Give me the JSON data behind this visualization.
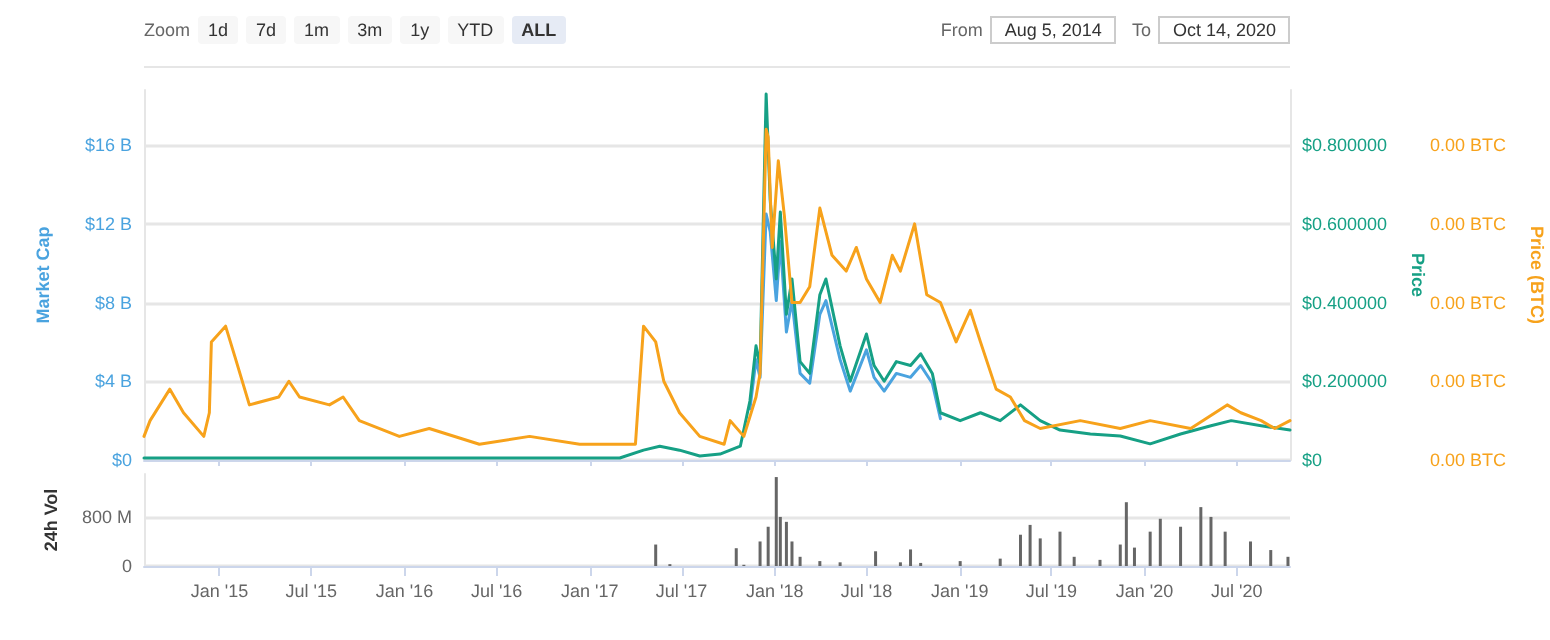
{
  "chart_data": [
    {
      "type": "line",
      "ylabel": "Market Cap",
      "y2label": "Price",
      "y3label": "Price (BTC)",
      "annotations": [
        "Zoom",
        "1d",
        "7d",
        "1m",
        "3m",
        "1y",
        "YTD",
        "ALL",
        "From",
        "Aug 5, 2014",
        "To",
        "Oct 14, 2020"
      ],
      "xlim": [
        "2014-08-05",
        "2020-10-14"
      ],
      "xticks": [
        {
          "value": "2015-01-01",
          "label": null
        },
        {
          "value": "2015-07-01",
          "label": null
        },
        {
          "value": "2016-01-01",
          "label": null
        },
        {
          "value": "2016-07-01",
          "label": null
        },
        {
          "value": "2017-01-01",
          "label": null
        },
        {
          "value": "2017-07-01",
          "label": null
        },
        {
          "value": "2018-01-01",
          "label": null
        },
        {
          "value": "2018-07-01",
          "label": null
        },
        {
          "value": "2019-01-01",
          "label": null
        },
        {
          "value": "2019-07-01",
          "label": null
        },
        {
          "value": "2020-01-01",
          "label": null
        },
        {
          "value": "2020-07-01",
          "label": null
        }
      ],
      "ylim": [
        0,
        18800000000
      ],
      "yticks": [
        {
          "value": 0,
          "label": "$0"
        },
        {
          "value": 4000000000,
          "label": "$4 B"
        },
        {
          "value": 8000000000,
          "label": "$8 B"
        },
        {
          "value": 12000000000,
          "label": "$12 B"
        },
        {
          "value": 16000000000,
          "label": "$16 B"
        }
      ],
      "y2lim": [
        0,
        0.94
      ],
      "y2ticks": [
        {
          "value": 0,
          "label": "$0"
        },
        {
          "value": 0.2,
          "label": "$0.200000"
        },
        {
          "value": 0.4,
          "label": "$0.400000"
        },
        {
          "value": 0.6,
          "label": "$0.600000"
        },
        {
          "value": 0.8,
          "label": "$0.800000"
        }
      ],
      "y3lim": [
        0,
        4.7e-05
      ],
      "y3ticks": [
        {
          "value": 0,
          "label": "0.00 BTC"
        },
        {
          "value": 1e-05,
          "label": "0.00 BTC"
        },
        {
          "value": 2e-05,
          "label": "0.00 BTC"
        },
        {
          "value": 3e-05,
          "label": "0.00 BTC"
        },
        {
          "value": 4e-05,
          "label": "0.00 BTC"
        }
      ],
      "tick_labels": "y",
      "grid": "y",
      "marker": "none",
      "line_style": "solid",
      "series": [
        {
          "axis": "y",
          "color": "#4aa3df",
          "x": [
            "2017-11-13",
            "2017-11-25",
            "2017-12-03",
            "2017-12-15",
            "2017-12-23",
            "2018-01-04",
            "2018-01-12",
            "2018-01-24",
            "2018-02-04",
            "2018-02-20",
            "2018-03-11",
            "2018-03-31",
            "2018-04-12",
            "2018-05-10",
            "2018-05-30",
            "2018-07-01",
            "2018-07-16",
            "2018-08-05",
            "2018-08-29",
            "2018-09-26",
            "2018-10-16",
            "2018-11-08",
            "2018-11-24"
          ],
          "values": [
            2600000000,
            5100000000,
            4200000000,
            12500000000,
            11600000000,
            8100000000,
            11100000000,
            6500000000,
            8100000000,
            4400000000,
            3900000000,
            7400000000,
            8100000000,
            5100000000,
            3500000000,
            5600000000,
            4200000000,
            3500000000,
            4400000000,
            4200000000,
            4800000000,
            3900000000,
            2100000000
          ]
        },
        {
          "axis": "y2",
          "color": "#16a085",
          "x": [
            "2014-08-05",
            "2017-03-01",
            "2017-04-17",
            "2017-05-19",
            "2017-06-27",
            "2017-08-06",
            "2017-09-15",
            "2017-10-25",
            "2017-11-13",
            "2017-11-25",
            "2017-12-03",
            "2017-12-15",
            "2017-12-23",
            "2018-01-04",
            "2018-01-12",
            "2018-01-24",
            "2018-02-04",
            "2018-02-20",
            "2018-03-11",
            "2018-03-31",
            "2018-04-12",
            "2018-05-10",
            "2018-05-30",
            "2018-07-01",
            "2018-07-16",
            "2018-08-05",
            "2018-08-29",
            "2018-09-26",
            "2018-10-16",
            "2018-11-08",
            "2018-11-24",
            "2019-01-02",
            "2019-02-11",
            "2019-03-22",
            "2019-05-01",
            "2019-06-09",
            "2019-07-18",
            "2019-09-16",
            "2019-11-14",
            "2020-01-12",
            "2020-03-12",
            "2020-05-11",
            "2020-06-20",
            "2020-08-18",
            "2020-10-14"
          ],
          "values": [
            0.005,
            0.005,
            0.025,
            0.035,
            0.025,
            0.01,
            0.015,
            0.035,
            0.15,
            0.29,
            0.24,
            0.93,
            0.66,
            0.46,
            0.63,
            0.37,
            0.46,
            0.25,
            0.22,
            0.42,
            0.46,
            0.29,
            0.2,
            0.32,
            0.24,
            0.2,
            0.25,
            0.24,
            0.27,
            0.22,
            0.12,
            0.1,
            0.12,
            0.1,
            0.14,
            0.1,
            0.076,
            0.066,
            0.061,
            0.041,
            0.066,
            0.087,
            0.1,
            0.087,
            0.076
          ]
        },
        {
          "axis": "y3",
          "color": "#f7a21b",
          "x": [
            "2014-08-05",
            "2014-08-17",
            "2014-09-25",
            "2014-10-22",
            "2014-12-01",
            "2014-12-12",
            "2014-12-16",
            "2015-01-13",
            "2015-02-01",
            "2015-03-01",
            "2015-04-28",
            "2015-05-18",
            "2015-06-08",
            "2015-08-06",
            "2015-09-02",
            "2015-10-04",
            "2015-12-22",
            "2016-02-19",
            "2016-05-28",
            "2016-09-04",
            "2016-12-12",
            "2017-03-01",
            "2017-04-01",
            "2017-04-17",
            "2017-05-11",
            "2017-05-27",
            "2017-06-27",
            "2017-08-06",
            "2017-09-23",
            "2017-10-05",
            "2017-11-01",
            "2017-11-25",
            "2017-12-03",
            "2017-12-15",
            "2017-12-19",
            "2017-12-27",
            "2018-01-08",
            "2018-01-20",
            "2018-02-04",
            "2018-02-20",
            "2018-03-11",
            "2018-03-31",
            "2018-04-24",
            "2018-05-22",
            "2018-06-11",
            "2018-07-01",
            "2018-07-28",
            "2018-08-21",
            "2018-09-06",
            "2018-10-04",
            "2018-10-28",
            "2018-11-24",
            "2018-12-25",
            "2019-01-22",
            "2019-02-11",
            "2019-03-14",
            "2019-04-11",
            "2019-05-09",
            "2019-06-09",
            "2019-08-27",
            "2019-11-14",
            "2020-01-12",
            "2020-04-01",
            "2020-06-12",
            "2020-07-09",
            "2020-08-18",
            "2020-09-14",
            "2020-10-14"
          ],
          "values": [
            3e-06,
            5e-06,
            9e-06,
            6e-06,
            3e-06,
            6e-06,
            1.5e-05,
            1.7e-05,
            1.3e-05,
            7e-06,
            8e-06,
            1e-05,
            8e-06,
            7e-06,
            8e-06,
            5e-06,
            3e-06,
            4e-06,
            2e-06,
            3e-06,
            2e-06,
            2e-06,
            2e-06,
            1.7e-05,
            1.5e-05,
            1e-05,
            6e-06,
            3e-06,
            2e-06,
            5e-06,
            3e-06,
            8e-06,
            1.1e-05,
            4.2e-05,
            4.1e-05,
            2.7e-05,
            3.8e-05,
            3.1e-05,
            2e-05,
            2e-05,
            2.2e-05,
            3.2e-05,
            2.6e-05,
            2.4e-05,
            2.7e-05,
            2.3e-05,
            2e-05,
            2.6e-05,
            2.4e-05,
            3e-05,
            2.1e-05,
            2e-05,
            1.5e-05,
            1.9e-05,
            1.5e-05,
            9e-06,
            8e-06,
            5e-06,
            4e-06,
            5e-06,
            4e-06,
            5e-06,
            4e-06,
            7e-06,
            6e-06,
            5e-06,
            4e-06,
            5e-06
          ]
        }
      ]
    },
    {
      "type": "bar",
      "ylabel": "24h Vol",
      "color": "#666666",
      "xlim": [
        "2014-08-05",
        "2020-10-14"
      ],
      "xticks": [
        {
          "value": "2015-01-01",
          "label": "Jan '15"
        },
        {
          "value": "2015-07-01",
          "label": "Jul '15"
        },
        {
          "value": "2016-01-01",
          "label": "Jan '16"
        },
        {
          "value": "2016-07-01",
          "label": "Jul '16"
        },
        {
          "value": "2017-01-01",
          "label": "Jan '17"
        },
        {
          "value": "2017-07-01",
          "label": "Jul '17"
        },
        {
          "value": "2018-01-01",
          "label": "Jan '18"
        },
        {
          "value": "2018-07-01",
          "label": "Jul '18"
        },
        {
          "value": "2019-01-01",
          "label": "Jan '19"
        },
        {
          "value": "2019-07-01",
          "label": "Jul '19"
        },
        {
          "value": "2020-01-01",
          "label": "Jan '20"
        },
        {
          "value": "2020-07-01",
          "label": "Jul '20"
        }
      ],
      "ylim": [
        0,
        1500000000
      ],
      "yticks": [
        0,
        {
          "value": 800000000,
          "label": "800 M"
        }
      ],
      "grid": "y",
      "x": [
        "2017-05-11",
        "2017-06-08",
        "2017-10-17",
        "2017-11-01",
        "2017-12-03",
        "2017-12-19",
        "2018-01-04",
        "2018-01-12",
        "2018-01-24",
        "2018-02-04",
        "2018-02-20",
        "2018-03-31",
        "2018-05-10",
        "2018-07-19",
        "2018-09-06",
        "2018-09-26",
        "2018-10-16",
        "2019-01-02",
        "2019-03-22",
        "2019-05-01",
        "2019-05-20",
        "2019-06-09",
        "2019-07-18",
        "2019-08-15",
        "2019-10-05",
        "2019-11-14",
        "2019-11-26",
        "2019-12-12",
        "2020-01-12",
        "2020-02-01",
        "2020-03-12",
        "2020-04-21",
        "2020-05-11",
        "2020-06-08",
        "2020-07-28",
        "2020-09-06",
        "2020-10-10"
      ],
      "values": [
        350000000,
        30000000,
        290000000,
        20000000,
        400000000,
        640000000,
        1450000000,
        800000000,
        720000000,
        400000000,
        150000000,
        80000000,
        60000000,
        240000000,
        60000000,
        270000000,
        50000000,
        80000000,
        120000000,
        510000000,
        670000000,
        450000000,
        560000000,
        150000000,
        100000000,
        350000000,
        1040000000,
        300000000,
        560000000,
        770000000,
        640000000,
        960000000,
        800000000,
        560000000,
        400000000,
        260000000,
        150000000
      ]
    }
  ]
}
